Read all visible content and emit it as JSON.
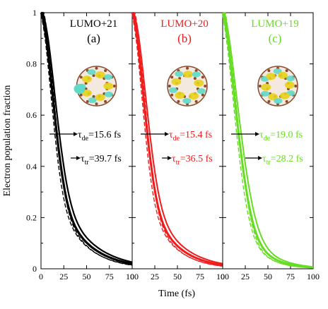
{
  "chart_data": {
    "type": "line",
    "xlabel": "Time (fs)",
    "ylabel": "Electron population fraction",
    "xlim": [
      0,
      100
    ],
    "ylim": [
      0,
      1
    ],
    "x_ticks": [
      "0",
      "25",
      "50",
      "75",
      "100"
    ],
    "y_ticks": [
      "0",
      "0.2",
      "0.4",
      "0.6",
      "0.8",
      "1"
    ],
    "panels": [
      {
        "title": "LUMO+21",
        "letter": "(a)",
        "color": "#000000",
        "tau_de_text": "=15.6 fs",
        "tau_tr_text": "=39.7 fs",
        "tau_de": 15.6,
        "tau_tr": 39.7
      },
      {
        "title": "LUMO+20",
        "letter": "(b)",
        "color": "#ee1c1c",
        "tau_de_text": "=15.4 fs",
        "tau_tr_text": "=36.5 fs",
        "tau_de": 15.4,
        "tau_tr": 36.5
      },
      {
        "title": "LUMO+19",
        "letter": "(c)",
        "color": "#66dd22",
        "tau_de_text": "=19.0 fs",
        "tau_tr_text": "=28.2 fs",
        "tau_de": 19.0,
        "tau_tr": 28.2
      }
    ],
    "tau_symbol": "τ",
    "sub_de": "de",
    "sub_tr": "tr"
  }
}
